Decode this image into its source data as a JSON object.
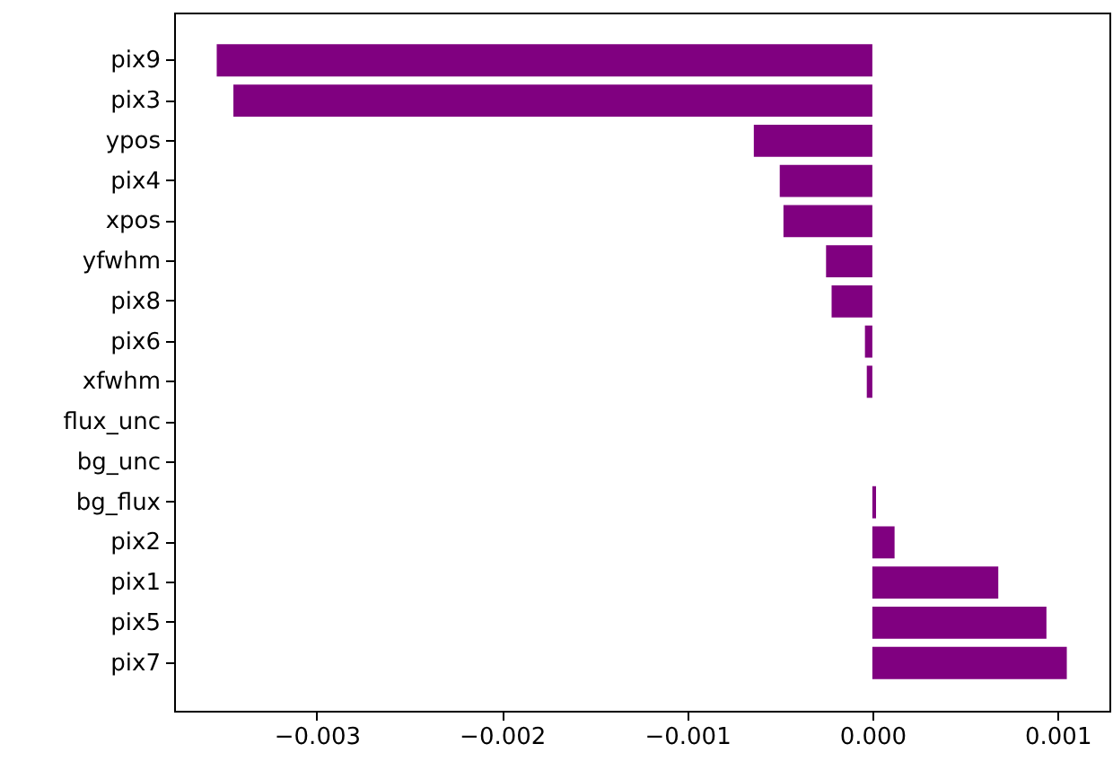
{
  "chart_data": {
    "type": "bar",
    "orientation": "horizontal",
    "categories": [
      "pix9",
      "pix3",
      "ypos",
      "pix4",
      "xpos",
      "yfwhm",
      "pix8",
      "pix6",
      "xfwhm",
      "flux_unc",
      "bg_unc",
      "bg_flux",
      "pix2",
      "pix1",
      "pix5",
      "pix7"
    ],
    "values": [
      -0.00354,
      -0.00345,
      -0.00064,
      -0.0005,
      -0.00048,
      -0.00025,
      -0.00022,
      -4e-05,
      -3e-05,
      0,
      0,
      2e-05,
      0.00012,
      0.00068,
      0.00094,
      0.00105
    ],
    "color": "#800080",
    "xlim": [
      -0.00377,
      0.00128
    ],
    "xticks": [
      {
        "value": -0.003,
        "label": "−0.003"
      },
      {
        "value": -0.002,
        "label": "−0.002"
      },
      {
        "value": -0.001,
        "label": "−0.001"
      },
      {
        "value": 0,
        "label": "0.000"
      },
      {
        "value": 0.001,
        "label": "0.001"
      }
    ],
    "grid": false
  }
}
